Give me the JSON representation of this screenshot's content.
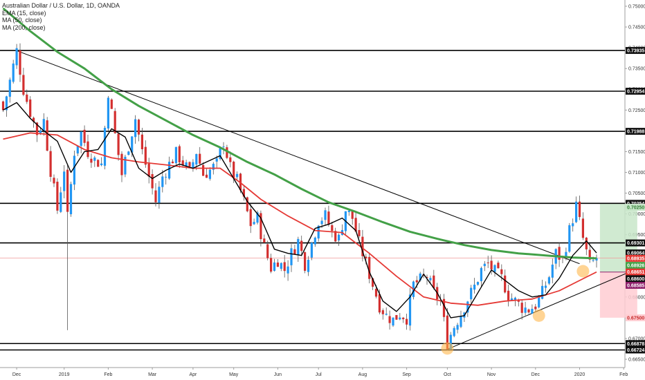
{
  "chart_data": {
    "type": "candlestick",
    "title": "Australian Dollar / U.S. Dollar, 1D, OANDA",
    "indicators": [
      {
        "label": "EMA (15, close)",
        "color": "#000000"
      },
      {
        "label": "MA (50, close)",
        "color": "#e53935"
      },
      {
        "label": "MA (200, close)",
        "color": "#43a047"
      }
    ],
    "ylim": [
      0.663,
      0.7515
    ],
    "y_ticks": [
      "0.75000",
      "0.74500",
      "0.74000",
      "0.73500",
      "0.73000",
      "0.72500",
      "0.72000",
      "0.71500",
      "0.71000",
      "0.70500",
      "0.70000",
      "0.69500",
      "0.69000",
      "0.68500",
      "0.68000",
      "0.67500",
      "0.67000",
      "0.66500"
    ],
    "y_tick_values": [
      0.75,
      0.745,
      0.74,
      0.735,
      0.73,
      0.725,
      0.72,
      0.715,
      0.71,
      0.705,
      0.7,
      0.695,
      0.69,
      0.685,
      0.68,
      0.675,
      0.67,
      0.665
    ],
    "x_ticks": [
      "Dec",
      "2019",
      "Feb",
      "Mar",
      "Apr",
      "May",
      "Jun",
      "Jul",
      "Aug",
      "Sep",
      "Oct",
      "Nov",
      "Dec",
      "2020",
      "Feb"
    ],
    "x_tick_index": [
      4,
      18,
      31,
      44,
      56,
      68,
      81,
      93,
      106,
      119,
      131,
      144,
      157,
      170,
      183
    ],
    "horizontal_levels": [
      {
        "label": "0.73935",
        "value": 0.73935
      },
      {
        "label": "0.72954",
        "value": 0.72954
      },
      {
        "label": "0.71988",
        "value": 0.71988
      },
      {
        "label": "0.70254",
        "value": 0.70254
      },
      {
        "label": "0.69301",
        "value": 0.69301
      },
      {
        "label": "0.66878",
        "value": 0.66878
      },
      {
        "label": "0.66724",
        "value": 0.66724
      }
    ],
    "price_tags": [
      {
        "label": "0.70250",
        "value": 0.7016,
        "bg": "#c8e6c9",
        "fg": "#2e7d32"
      },
      {
        "label": "0.69064",
        "value": 0.6906,
        "bg": "#111111",
        "fg": "#ffffff"
      },
      {
        "label": "0.68935",
        "value": 0.6893,
        "bg": "#e53935",
        "fg": "#ffffff"
      },
      {
        "label": "0.68926",
        "value": 0.6876,
        "bg": "#43a047",
        "fg": "#ffffff"
      },
      {
        "label": "0.68651",
        "value": 0.686,
        "bg": "#e53935",
        "fg": "#ffffff"
      },
      {
        "label": "0.68600",
        "value": 0.6844,
        "bg": "#111111",
        "fg": "#ffffff"
      },
      {
        "label": "0.68585",
        "value": 0.6828,
        "bg": "#8e1f6a",
        "fg": "#ffffff"
      },
      {
        "label": "0.67500",
        "value": 0.675,
        "bg": "#ffcdd2",
        "fg": "#c62828"
      }
    ],
    "current_price": 0.68935,
    "trendlines": [
      {
        "from": [
          4,
          0.7393
        ],
        "to": [
          170,
          0.688
        ]
      },
      {
        "from": [
          131,
          0.6674
        ],
        "to": [
          187,
          0.6868
        ]
      }
    ],
    "circles": [
      [
        131,
        0.6676
      ],
      [
        158,
        0.6755
      ],
      [
        171,
        0.6862
      ]
    ],
    "position_box": {
      "x_start": 176,
      "x_end": 187,
      "entry": 0.686,
      "target": 0.7025,
      "stop": 0.675
    },
    "ema_15": [
      [
        0,
        0.725
      ],
      [
        4,
        0.7268
      ],
      [
        8,
        0.723
      ],
      [
        12,
        0.72
      ],
      [
        16,
        0.7175
      ],
      [
        20,
        0.71
      ],
      [
        24,
        0.715
      ],
      [
        28,
        0.7155
      ],
      [
        32,
        0.7205
      ],
      [
        36,
        0.7185
      ],
      [
        40,
        0.711
      ],
      [
        44,
        0.7085
      ],
      [
        48,
        0.7105
      ],
      [
        52,
        0.712
      ],
      [
        56,
        0.711
      ],
      [
        60,
        0.7125
      ],
      [
        64,
        0.714
      ],
      [
        68,
        0.7085
      ],
      [
        72,
        0.703
      ],
      [
        76,
        0.699
      ],
      [
        80,
        0.6915
      ],
      [
        84,
        0.6905
      ],
      [
        88,
        0.69
      ],
      [
        92,
        0.6965
      ],
      [
        96,
        0.6975
      ],
      [
        100,
        0.699
      ],
      [
        104,
        0.696
      ],
      [
        108,
        0.686
      ],
      [
        112,
        0.679
      ],
      [
        116,
        0.6765
      ],
      [
        120,
        0.68
      ],
      [
        124,
        0.6855
      ],
      [
        128,
        0.681
      ],
      [
        132,
        0.675
      ],
      [
        136,
        0.6755
      ],
      [
        140,
        0.681
      ],
      [
        144,
        0.6865
      ],
      [
        148,
        0.684
      ],
      [
        152,
        0.6815
      ],
      [
        156,
        0.68
      ],
      [
        160,
        0.6805
      ],
      [
        164,
        0.6845
      ],
      [
        168,
        0.69
      ],
      [
        172,
        0.6935
      ],
      [
        175,
        0.6906
      ]
    ],
    "ma_50": [
      [
        0,
        0.718
      ],
      [
        8,
        0.7195
      ],
      [
        16,
        0.719
      ],
      [
        24,
        0.7155
      ],
      [
        32,
        0.7135
      ],
      [
        40,
        0.7125
      ],
      [
        48,
        0.7118
      ],
      [
        56,
        0.711
      ],
      [
        64,
        0.711
      ],
      [
        70,
        0.7075
      ],
      [
        76,
        0.7035
      ],
      [
        84,
        0.6995
      ],
      [
        92,
        0.696
      ],
      [
        100,
        0.6955
      ],
      [
        108,
        0.6905
      ],
      [
        116,
        0.685
      ],
      [
        124,
        0.68
      ],
      [
        132,
        0.6785
      ],
      [
        140,
        0.678
      ],
      [
        148,
        0.679
      ],
      [
        156,
        0.6795
      ],
      [
        164,
        0.6815
      ],
      [
        172,
        0.6848
      ],
      [
        175,
        0.686
      ]
    ],
    "ma_200": [
      [
        0,
        0.7495
      ],
      [
        8,
        0.744
      ],
      [
        16,
        0.739
      ],
      [
        24,
        0.735
      ],
      [
        32,
        0.73
      ],
      [
        40,
        0.726
      ],
      [
        48,
        0.7225
      ],
      [
        56,
        0.719
      ],
      [
        64,
        0.716
      ],
      [
        72,
        0.7125
      ],
      [
        80,
        0.7095
      ],
      [
        88,
        0.706
      ],
      [
        96,
        0.7028
      ],
      [
        104,
        0.7005
      ],
      [
        112,
        0.698
      ],
      [
        120,
        0.6957
      ],
      [
        128,
        0.694
      ],
      [
        136,
        0.6925
      ],
      [
        144,
        0.6913
      ],
      [
        152,
        0.6905
      ],
      [
        160,
        0.69
      ],
      [
        168,
        0.6895
      ],
      [
        175,
        0.6893
      ]
    ],
    "price_path": [
      [
        0,
        0.725
      ],
      [
        2,
        0.732
      ],
      [
        4,
        0.7393
      ],
      [
        6,
        0.73
      ],
      [
        8,
        0.7245
      ],
      [
        10,
        0.7195
      ],
      [
        12,
        0.7225
      ],
      [
        14,
        0.7105
      ],
      [
        16,
        0.701
      ],
      [
        18,
        0.711
      ],
      [
        19,
        0.699
      ],
      [
        21,
        0.715
      ],
      [
        23,
        0.7195
      ],
      [
        25,
        0.715
      ],
      [
        27,
        0.713
      ],
      [
        29,
        0.712
      ],
      [
        31,
        0.7295
      ],
      [
        33,
        0.719
      ],
      [
        35,
        0.7095
      ],
      [
        37,
        0.7165
      ],
      [
        39,
        0.723
      ],
      [
        41,
        0.715
      ],
      [
        43,
        0.709
      ],
      [
        45,
        0.703
      ],
      [
        47,
        0.709
      ],
      [
        49,
        0.712
      ],
      [
        51,
        0.7145
      ],
      [
        53,
        0.7125
      ],
      [
        55,
        0.71
      ],
      [
        57,
        0.715
      ],
      [
        59,
        0.7095
      ],
      [
        61,
        0.7105
      ],
      [
        63,
        0.712
      ],
      [
        65,
        0.7175
      ],
      [
        67,
        0.711
      ],
      [
        69,
        0.708
      ],
      [
        71,
        0.703
      ],
      [
        73,
        0.6975
      ],
      [
        75,
        0.699
      ],
      [
        77,
        0.692
      ],
      [
        79,
        0.687
      ],
      [
        81,
        0.689
      ],
      [
        83,
        0.6865
      ],
      [
        85,
        0.6905
      ],
      [
        87,
        0.6935
      ],
      [
        89,
        0.688
      ],
      [
        91,
        0.693
      ],
      [
        93,
        0.6985
      ],
      [
        95,
        0.6995
      ],
      [
        97,
        0.6955
      ],
      [
        99,
        0.694
      ],
      [
        101,
        0.701
      ],
      [
        103,
        0.699
      ],
      [
        105,
        0.693
      ],
      [
        107,
        0.688
      ],
      [
        109,
        0.683
      ],
      [
        111,
        0.678
      ],
      [
        113,
        0.6755
      ],
      [
        115,
        0.6745
      ],
      [
        117,
        0.676
      ],
      [
        119,
        0.675
      ],
      [
        121,
        0.683
      ],
      [
        123,
        0.684
      ],
      [
        125,
        0.685
      ],
      [
        127,
        0.681
      ],
      [
        129,
        0.679
      ],
      [
        131,
        0.669
      ],
      [
        133,
        0.673
      ],
      [
        135,
        0.676
      ],
      [
        137,
        0.6795
      ],
      [
        139,
        0.6825
      ],
      [
        141,
        0.6865
      ],
      [
        143,
        0.688
      ],
      [
        145,
        0.686
      ],
      [
        147,
        0.6845
      ],
      [
        149,
        0.6805
      ],
      [
        151,
        0.679
      ],
      [
        153,
        0.6775
      ],
      [
        155,
        0.677
      ],
      [
        157,
        0.678
      ],
      [
        159,
        0.681
      ],
      [
        161,
        0.685
      ],
      [
        163,
        0.6905
      ],
      [
        165,
        0.689
      ],
      [
        167,
        0.696
      ],
      [
        169,
        0.702
      ],
      [
        171,
        0.694
      ],
      [
        173,
        0.6875
      ],
      [
        175,
        0.6894
      ]
    ]
  }
}
